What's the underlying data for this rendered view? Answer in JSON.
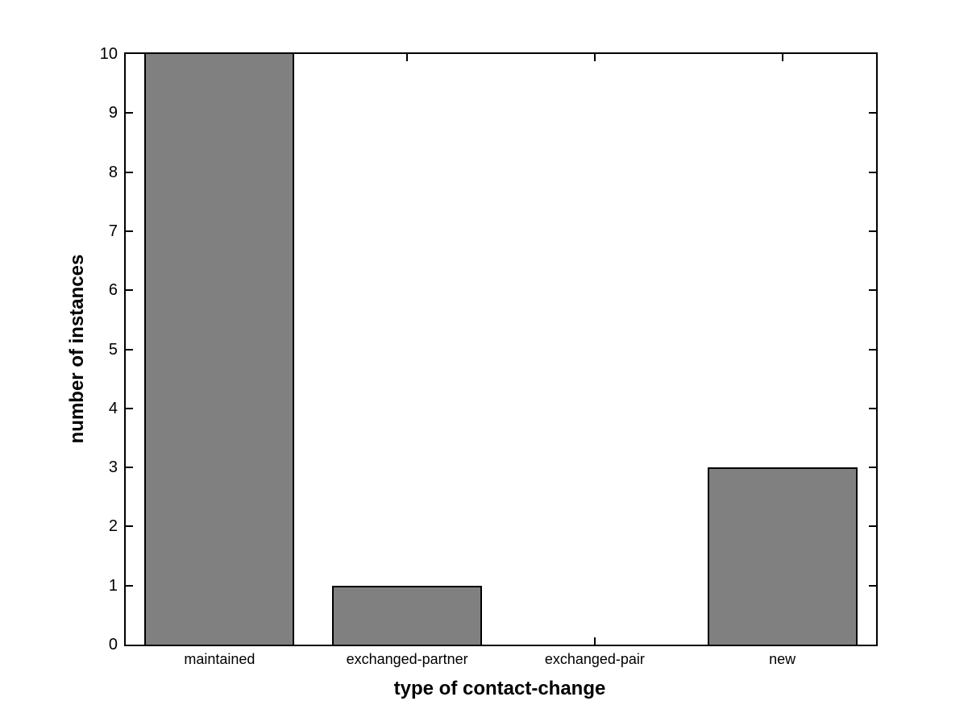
{
  "figure": {
    "background": "#ffffff",
    "axis_color": "#000000",
    "bar_fill": "#808080",
    "bar_edge": "#000000"
  },
  "chart_data": {
    "type": "bar",
    "categories": [
      "maintained",
      "exchanged-partner",
      "exchanged-pair",
      "new"
    ],
    "values": [
      10,
      1,
      0,
      3
    ],
    "title": "",
    "xlabel": "type of contact-change",
    "ylabel": "number of instances",
    "ylim": [
      0,
      10
    ],
    "yticks": [
      0,
      1,
      2,
      3,
      4,
      5,
      6,
      7,
      8,
      9,
      10
    ],
    "grid": false,
    "legend": null,
    "bar_width_fraction": 0.8,
    "tick_direction": "in",
    "box": true
  }
}
